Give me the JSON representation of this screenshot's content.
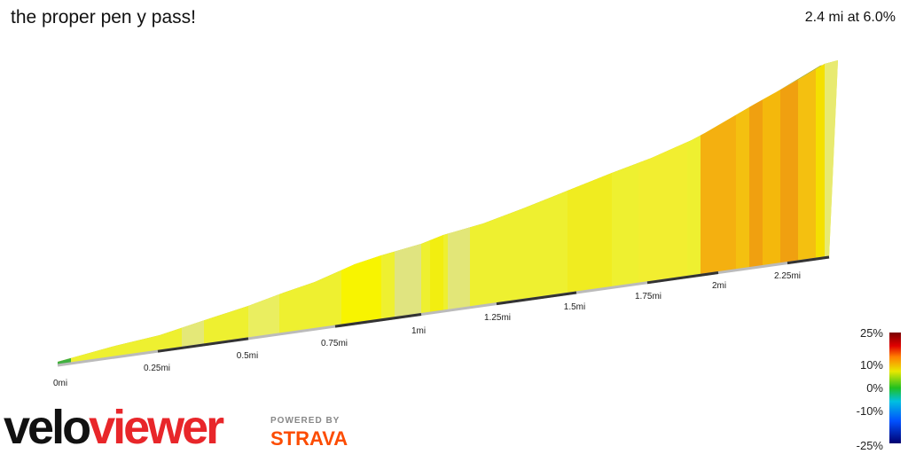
{
  "header": {
    "title": "the proper pen y pass!",
    "summary": "2.4 mi at 6.0%"
  },
  "distance_labels": [
    "0mi",
    "0.25mi",
    "0.5mi",
    "0.75mi",
    "1mi",
    "1.25mi",
    "1.5mi",
    "1.75mi",
    "2mi",
    "2.25mi"
  ],
  "gradient_legend": [
    "25%",
    "10%",
    "0%",
    "-10%",
    "-25%"
  ],
  "logo": {
    "velo": "velo",
    "viewer": "viewer",
    "powered_by": "POWERED BY",
    "strava": "STRAVA"
  }
}
